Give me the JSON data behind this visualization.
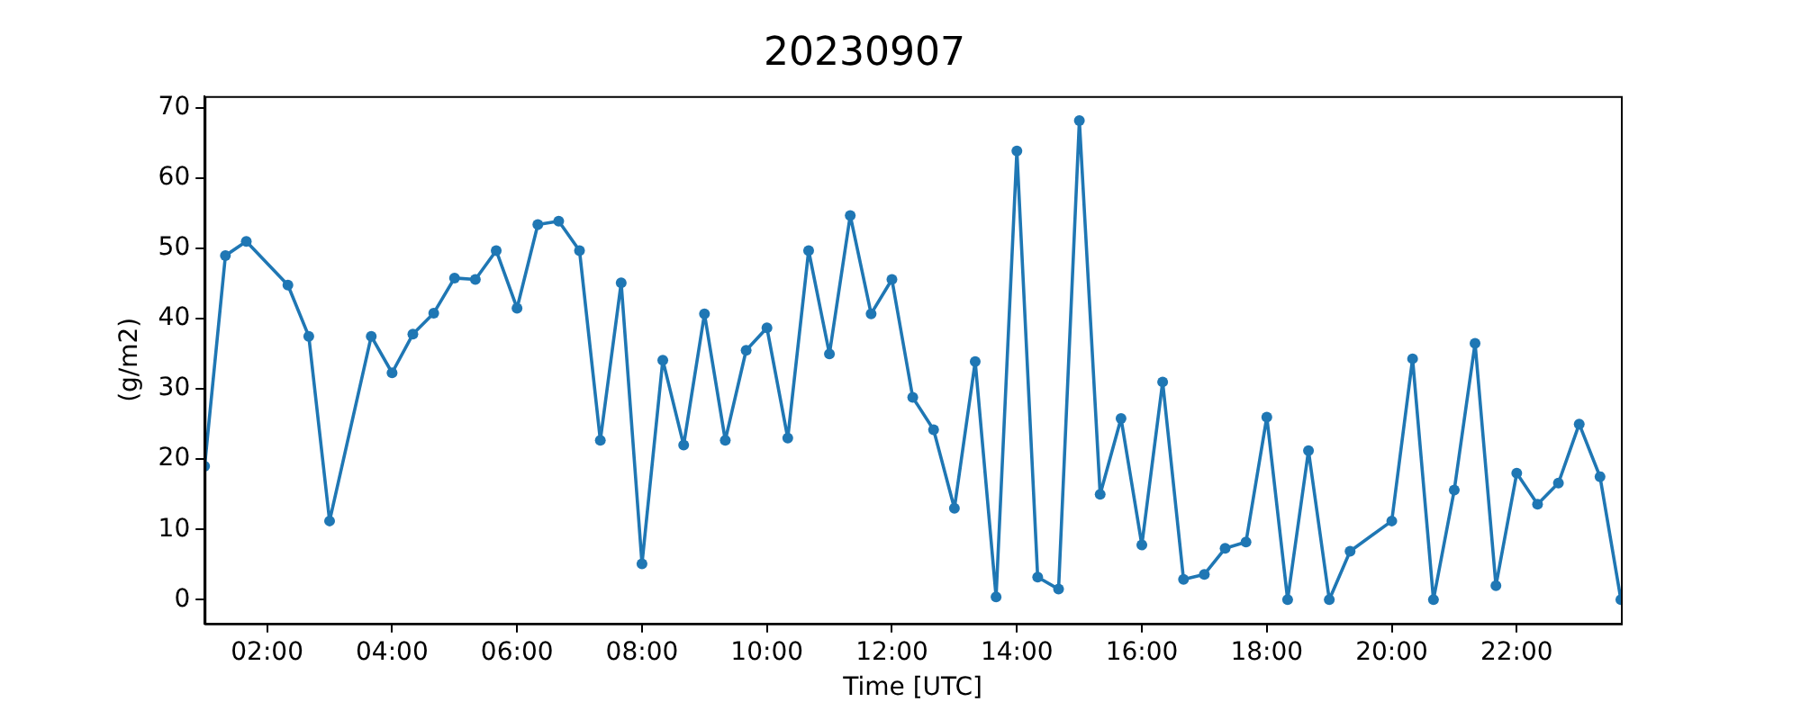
{
  "chart_data": {
    "type": "line",
    "title": "20230907",
    "xlabel": "Time [UTC]",
    "ylabel": "(g/m2)",
    "marker": "circle",
    "grid": false,
    "legend": false,
    "xlim": [
      1.0,
      23.667
    ],
    "ylim": [
      -3.4,
      71.7
    ],
    "xticks": [
      {
        "value": 2,
        "label": "02:00"
      },
      {
        "value": 4,
        "label": "04:00"
      },
      {
        "value": 6,
        "label": "06:00"
      },
      {
        "value": 8,
        "label": "08:00"
      },
      {
        "value": 10,
        "label": "10:00"
      },
      {
        "value": 12,
        "label": "12:00"
      },
      {
        "value": 14,
        "label": "14:00"
      },
      {
        "value": 16,
        "label": "16:00"
      },
      {
        "value": 18,
        "label": "18:00"
      },
      {
        "value": 20,
        "label": "20:00"
      },
      {
        "value": 22,
        "label": "22:00"
      }
    ],
    "yticks": [
      0,
      10,
      20,
      30,
      40,
      50,
      60,
      70
    ],
    "series": [
      {
        "color": "#1f77b4",
        "x": [
          1.0,
          1.333,
          1.667,
          2.333,
          2.667,
          3.0,
          3.667,
          4.0,
          4.333,
          4.667,
          5.0,
          5.333,
          5.667,
          6.0,
          6.333,
          6.667,
          7.0,
          7.333,
          7.667,
          8.0,
          8.333,
          8.667,
          9.0,
          9.333,
          9.667,
          10.0,
          10.333,
          10.667,
          11.0,
          11.333,
          11.667,
          12.0,
          12.333,
          12.667,
          13.0,
          13.333,
          13.667,
          14.0,
          14.333,
          14.667,
          15.0,
          15.333,
          15.667,
          16.0,
          16.333,
          16.667,
          17.0,
          17.333,
          17.667,
          18.0,
          18.333,
          18.667,
          19.0,
          19.333,
          20.0,
          20.333,
          20.667,
          21.0,
          21.333,
          21.667,
          22.0,
          22.333,
          22.667,
          23.0,
          23.333,
          23.667
        ],
        "values": [
          19,
          49,
          51,
          44.8,
          37.5,
          11.2,
          37.5,
          32.3,
          37.8,
          40.8,
          45.8,
          45.6,
          49.7,
          41.5,
          53.4,
          53.9,
          49.7,
          22.7,
          45.1,
          5.1,
          34.1,
          22,
          40.7,
          22.7,
          35.5,
          38.7,
          23,
          49.7,
          35,
          54.7,
          40.7,
          45.6,
          28.8,
          24.2,
          13,
          33.9,
          0.4,
          63.9,
          3.2,
          1.5,
          68.2,
          15,
          25.8,
          7.8,
          31,
          2.9,
          3.6,
          7.3,
          8.2,
          26,
          0,
          21.2,
          0,
          6.9,
          11.2,
          34.3,
          0,
          15.6,
          36.5,
          2,
          18,
          13.6,
          16.6,
          25,
          17.5,
          0
        ]
      }
    ]
  }
}
